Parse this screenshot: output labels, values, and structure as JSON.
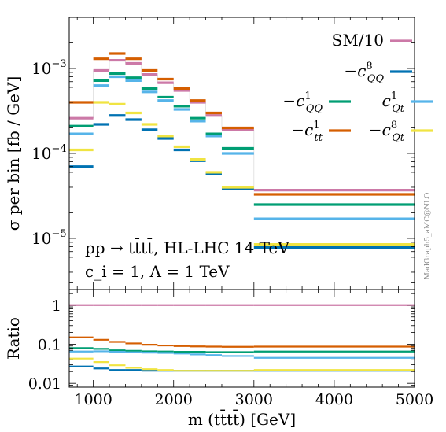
{
  "chart_data": {
    "type": "line",
    "upper_panel": {
      "ylabel": "σ per bin [fb / GeV]",
      "yscale": "log",
      "ylim": [
        2.5e-06,
        0.004
      ],
      "yticks": [
        "10^{-3}",
        "10^{-4}",
        "10^{-5}"
      ],
      "bin_edges": [
        700,
        1000,
        1200,
        1400,
        1600,
        1800,
        2000,
        2200,
        2400,
        2600,
        3000,
        5000
      ],
      "series": [
        {
          "name": "SM/10",
          "color": "#cc79a7",
          "values": [
            0.00026,
            0.00095,
            0.00125,
            0.00115,
            0.00085,
            0.00068,
            0.00055,
            0.0004,
            0.00028,
            0.00019,
            3.7e-05
          ]
        },
        {
          "name": "−c^8_{QQ}",
          "color": "#0072b2",
          "values": [
            7e-05,
            0.00022,
            0.00028,
            0.00025,
            0.00019,
            0.00015,
            0.00011,
            8.2e-05,
            5.8e-05,
            3.8e-05,
            7.8e-06
          ]
        },
        {
          "name": "−c^1_{QQ}",
          "color": "#009e73",
          "values": [
            0.00021,
            0.00072,
            0.00087,
            0.00078,
            0.00058,
            0.00046,
            0.00036,
            0.00026,
            0.00017,
            0.000115,
            2.5e-05
          ]
        },
        {
          "name": "c^1_{Qt}",
          "color": "#56b4e9",
          "values": [
            0.00017,
            0.00063,
            0.0008,
            0.00072,
            0.00053,
            0.00042,
            0.00033,
            0.00024,
            0.00016,
            0.0001,
            1.7e-05
          ]
        },
        {
          "name": "−c^1_{tt}",
          "color": "#d55e00",
          "values": [
            0.0004,
            0.0013,
            0.0015,
            0.0013,
            0.00095,
            0.00075,
            0.00058,
            0.00042,
            0.0003,
            0.0002,
            3.3e-05
          ]
        },
        {
          "name": "−c^8_{Qt}",
          "color": "#f0e442",
          "values": [
            0.00011,
            0.0004,
            0.00038,
            0.0003,
            0.00022,
            0.00016,
            0.00012,
            8.5e-05,
            6e-05,
            4e-05,
            8.5e-06
          ]
        }
      ],
      "annotations": [
        "pp → tt̄tt̄,   HL-LHC 14 TeV",
        "c_i = 1, Λ = 1 TeV"
      ],
      "watermark": "MadGraph5_aMC@NLO"
    },
    "lower_panel": {
      "ylabel": "Ratio",
      "yscale": "log",
      "ylim": [
        0.008,
        2.5
      ],
      "yticks": [
        "1",
        "0.1",
        "0.01"
      ],
      "xlabel": "m (tt̄tt̄) [GeV]",
      "xlim": [
        700,
        5000
      ],
      "xticks": [
        "1000",
        "2000",
        "3000",
        "4000",
        "5000"
      ],
      "series": [
        {
          "name": "SM/10",
          "values": [
            1,
            1,
            1,
            1,
            1,
            1,
            1,
            1,
            1,
            1,
            1
          ]
        },
        {
          "name": "−c^8_{QQ}",
          "values": [
            0.027,
            0.024,
            0.022,
            0.022,
            0.021,
            0.021,
            0.021,
            0.021,
            0.021,
            0.021,
            0.021
          ]
        },
        {
          "name": "−c^1_{QQ}",
          "values": [
            0.08,
            0.076,
            0.07,
            0.068,
            0.066,
            0.065,
            0.064,
            0.064,
            0.063,
            0.063,
            0.065
          ]
        },
        {
          "name": "c^1_{Qt}",
          "values": [
            0.065,
            0.066,
            0.064,
            0.062,
            0.061,
            0.06,
            0.058,
            0.055,
            0.053,
            0.05,
            0.045
          ]
        },
        {
          "name": "−c^1_{tt}",
          "values": [
            0.15,
            0.13,
            0.115,
            0.105,
            0.097,
            0.093,
            0.09,
            0.088,
            0.087,
            0.086,
            0.087
          ]
        },
        {
          "name": "−c^8_{Qt}",
          "values": [
            0.043,
            0.035,
            0.029,
            0.025,
            0.023,
            0.022,
            0.021,
            0.021,
            0.021,
            0.021,
            0.022
          ]
        }
      ]
    }
  }
}
